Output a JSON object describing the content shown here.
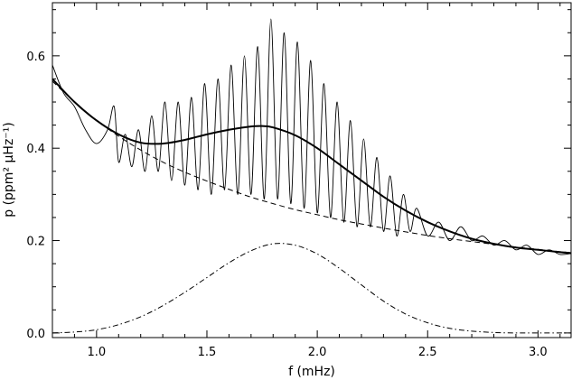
{
  "chart_data": {
    "type": "line",
    "title": "",
    "xlabel": "f (mHz)",
    "ylabel": "p (ppm² µHz⁻¹)",
    "xlim": [
      0.8,
      3.15
    ],
    "ylim": [
      -0.01,
      0.715
    ],
    "xticks": [
      1.0,
      1.5,
      2.0,
      2.5,
      3.0
    ],
    "xtick_labels": [
      "1.0",
      "1.5",
      "2.0",
      "2.5",
      "3.0"
    ],
    "yticks": [
      0.0,
      0.2,
      0.4,
      0.6
    ],
    "ytick_labels": [
      "0.0",
      "0.2",
      "0.4",
      "0.6"
    ],
    "grid": false,
    "legend": "none",
    "series": [
      {
        "style": "dashed",
        "x": [
          0.8,
          0.9,
          1.0,
          1.1,
          1.2,
          1.3,
          1.4,
          1.5,
          1.6,
          1.7,
          1.8,
          1.9,
          2.0,
          2.1,
          2.2,
          2.3,
          2.4,
          2.5,
          2.6,
          2.7,
          2.8,
          2.9,
          3.0,
          3.1,
          3.15
        ],
        "values": [
          0.545,
          0.5,
          0.46,
          0.426,
          0.396,
          0.37,
          0.348,
          0.329,
          0.311,
          0.294,
          0.28,
          0.267,
          0.256,
          0.245,
          0.236,
          0.227,
          0.219,
          0.211,
          0.204,
          0.198,
          0.192,
          0.186,
          0.181,
          0.176,
          0.174
        ]
      },
      {
        "style": "dash-dot",
        "x": [
          0.8,
          0.9,
          1.0,
          1.1,
          1.2,
          1.3,
          1.4,
          1.5,
          1.6,
          1.7,
          1.8,
          1.9,
          2.0,
          2.1,
          2.2,
          2.3,
          2.4,
          2.5,
          2.6,
          2.7,
          2.8,
          2.9,
          3.0,
          3.1,
          3.15
        ],
        "values": [
          0.0,
          0.002,
          0.007,
          0.018,
          0.035,
          0.059,
          0.088,
          0.12,
          0.152,
          0.178,
          0.193,
          0.19,
          0.171,
          0.14,
          0.104,
          0.069,
          0.041,
          0.022,
          0.01,
          0.004,
          0.001,
          0.0,
          0.0,
          0.0,
          0.0
        ]
      },
      {
        "style": "thick-solid",
        "x": [
          0.8,
          0.9,
          1.0,
          1.1,
          1.2,
          1.3,
          1.4,
          1.5,
          1.6,
          1.7,
          1.75,
          1.8,
          1.9,
          2.0,
          2.1,
          2.2,
          2.3,
          2.4,
          2.5,
          2.6,
          2.7,
          2.8,
          2.9,
          3.0,
          3.1,
          3.15
        ],
        "values": [
          0.55,
          0.5,
          0.46,
          0.43,
          0.412,
          0.41,
          0.418,
          0.43,
          0.44,
          0.447,
          0.448,
          0.445,
          0.428,
          0.4,
          0.365,
          0.33,
          0.295,
          0.265,
          0.24,
          0.22,
          0.204,
          0.193,
          0.185,
          0.18,
          0.175,
          0.173
        ]
      },
      {
        "style": "thin-solid-oscillating",
        "x": [
          0.8,
          0.85,
          0.9,
          0.95,
          1.0,
          1.05,
          1.08,
          1.1,
          1.13,
          1.16,
          1.19,
          1.22,
          1.25,
          1.28,
          1.31,
          1.34,
          1.37,
          1.4,
          1.43,
          1.46,
          1.49,
          1.52,
          1.55,
          1.58,
          1.61,
          1.64,
          1.67,
          1.7,
          1.73,
          1.76,
          1.79,
          1.82,
          1.85,
          1.88,
          1.91,
          1.94,
          1.97,
          2.0,
          2.03,
          2.06,
          2.09,
          2.12,
          2.15,
          2.18,
          2.21,
          2.24,
          2.27,
          2.3,
          2.33,
          2.36,
          2.39,
          2.42,
          2.45,
          2.5,
          2.55,
          2.6,
          2.65,
          2.7,
          2.75,
          2.8,
          2.85,
          2.9,
          2.95,
          3.0,
          3.05,
          3.1,
          3.15
        ],
        "values": [
          0.58,
          0.52,
          0.49,
          0.44,
          0.41,
          0.44,
          0.49,
          0.37,
          0.43,
          0.36,
          0.44,
          0.35,
          0.47,
          0.35,
          0.5,
          0.33,
          0.5,
          0.32,
          0.51,
          0.31,
          0.54,
          0.3,
          0.55,
          0.31,
          0.58,
          0.3,
          0.6,
          0.3,
          0.62,
          0.29,
          0.68,
          0.29,
          0.65,
          0.28,
          0.63,
          0.27,
          0.59,
          0.26,
          0.54,
          0.25,
          0.5,
          0.24,
          0.46,
          0.23,
          0.42,
          0.23,
          0.38,
          0.22,
          0.34,
          0.21,
          0.3,
          0.22,
          0.27,
          0.21,
          0.24,
          0.2,
          0.23,
          0.2,
          0.21,
          0.19,
          0.2,
          0.18,
          0.19,
          0.17,
          0.18,
          0.17,
          0.172
        ]
      }
    ]
  }
}
